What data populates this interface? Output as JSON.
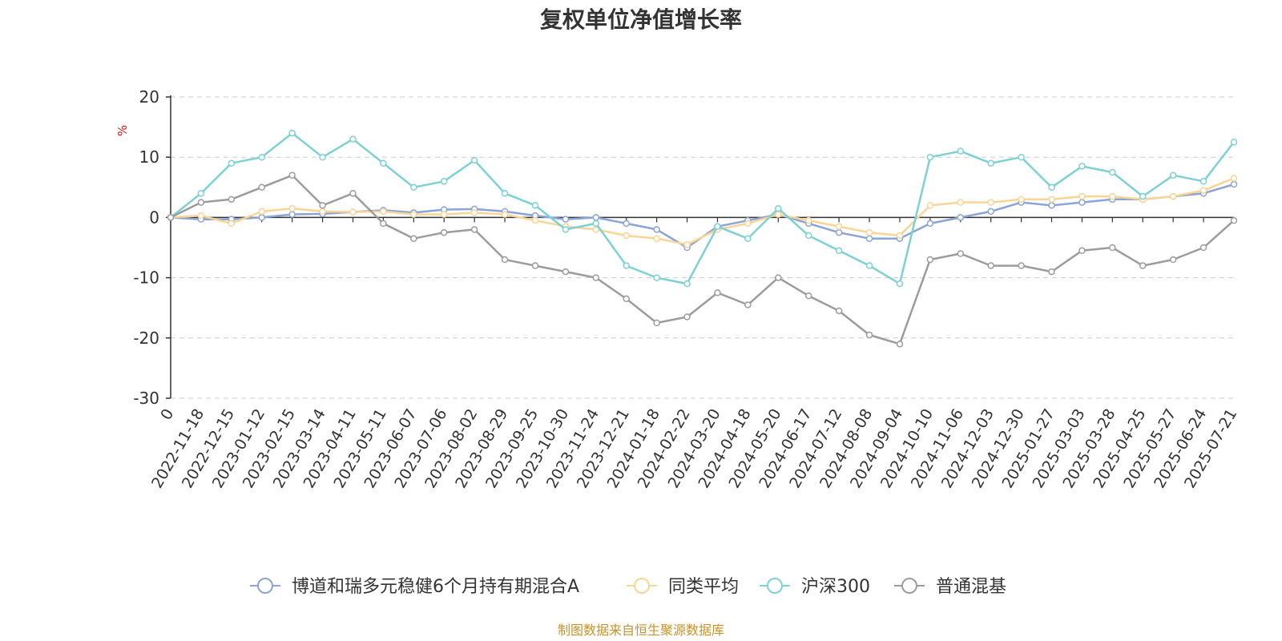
{
  "chart_data": {
    "type": "line",
    "title": "复权单位净值增长率",
    "yunit": "%",
    "ylim": [
      -30,
      20
    ],
    "yticks": [
      20,
      10,
      0,
      -10,
      -20,
      -30
    ],
    "grid": true,
    "legend_position": "bottom",
    "source": "制图数据来自恒生聚源数据库",
    "categories": [
      "0",
      "2022-11-18",
      "2022-12-15",
      "2023-01-12",
      "2023-02-15",
      "2023-03-14",
      "2023-04-11",
      "2023-05-11",
      "2023-06-07",
      "2023-07-06",
      "2023-08-02",
      "2023-08-29",
      "2023-09-25",
      "2023-10-30",
      "2023-11-24",
      "2023-12-21",
      "2024-01-18",
      "2024-02-22",
      "2024-03-20",
      "2024-04-18",
      "2024-05-20",
      "2024-06-17",
      "2024-07-12",
      "2024-08-08",
      "2024-09-04",
      "2024-10-10",
      "2024-11-06",
      "2024-12-03",
      "2024-12-30",
      "2025-01-27",
      "2025-03-03",
      "2025-03-28",
      "2025-04-25",
      "2025-05-27",
      "2025-06-24",
      "2025-07-21"
    ],
    "series": [
      {
        "name": "博道和瑞多元稳健6个月持有期混合A",
        "color": "#8aa4d6",
        "values": [
          0,
          -0.3,
          -0.3,
          0,
          0.5,
          0.6,
          0.9,
          1.2,
          0.8,
          1.3,
          1.4,
          1.0,
          0.3,
          -0.3,
          0,
          -1.0,
          -2.0,
          -5.0,
          -1.5,
          -0.5,
          0.5,
          -1.0,
          -2.5,
          -3.5,
          -3.5,
          -1.0,
          0,
          1.0,
          2.5,
          2.0,
          2.5,
          3.0,
          3.0,
          3.5,
          4.0,
          5.5
        ]
      },
      {
        "name": "同类平均",
        "color": "#f8d595",
        "values": [
          0,
          0.3,
          -1.0,
          1.0,
          1.5,
          1.0,
          0.9,
          1.0,
          0.5,
          0.5,
          0.8,
          0.5,
          -0.5,
          -1.5,
          -2.0,
          -3.0,
          -3.5,
          -4.5,
          -2.0,
          -1.0,
          0.5,
          -0.5,
          -1.5,
          -2.5,
          -3.0,
          2.0,
          2.5,
          2.5,
          3.0,
          3.0,
          3.5,
          3.5,
          3.0,
          3.5,
          4.5,
          6.5
        ]
      },
      {
        "name": "沪深300",
        "color": "#7dd0d3",
        "values": [
          0,
          4.0,
          9.0,
          10.0,
          14.0,
          10.0,
          13.0,
          9.0,
          5.0,
          6.0,
          9.5,
          4.0,
          2.0,
          -2.0,
          -1.0,
          -8.0,
          -10.0,
          -11.0,
          -1.5,
          -3.5,
          1.5,
          -3.0,
          -5.5,
          -8.0,
          -11.0,
          10.0,
          11.0,
          9.0,
          10.0,
          5.0,
          8.5,
          7.5,
          3.5,
          7.0,
          6.0,
          12.5
        ]
      },
      {
        "name": "普通混基",
        "color": "#9c9c9c",
        "values": [
          0,
          2.5,
          3.0,
          5.0,
          7.0,
          2.0,
          4.0,
          -1.0,
          -3.5,
          -2.5,
          -2.0,
          -7.0,
          -8.0,
          -9.0,
          -10.0,
          -13.5,
          -17.5,
          -16.5,
          -12.5,
          -14.5,
          -10.0,
          -13.0,
          -15.5,
          -19.5,
          -21.0,
          -7.0,
          -6.0,
          -8.0,
          -8.0,
          -9.0,
          -5.5,
          -5.0,
          -8.0,
          -7.0,
          -5.0,
          -0.5
        ]
      }
    ]
  }
}
